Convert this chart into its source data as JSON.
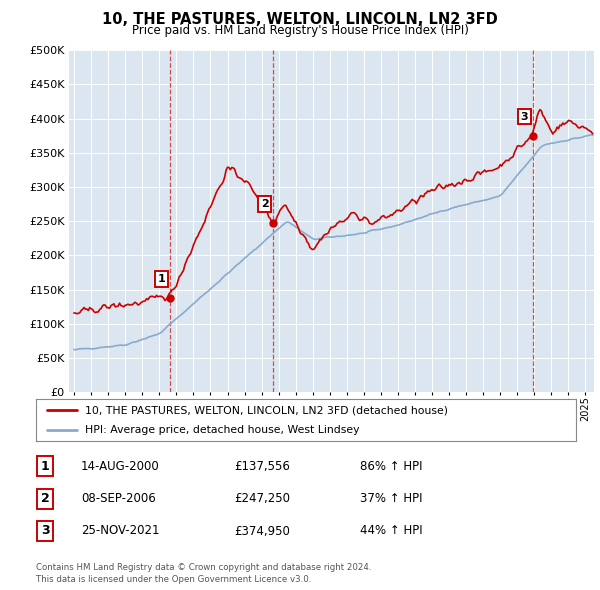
{
  "title": "10, THE PASTURES, WELTON, LINCOLN, LN2 3FD",
  "subtitle": "Price paid vs. HM Land Registry's House Price Index (HPI)",
  "sales": [
    {
      "label": "1",
      "date_str": "14-AUG-2000",
      "year": 2000.617,
      "price": 137556
    },
    {
      "label": "2",
      "date_str": "08-SEP-2006",
      "year": 2006.688,
      "price": 247250
    },
    {
      "label": "3",
      "date_str": "25-NOV-2021",
      "year": 2021.899,
      "price": 374950
    }
  ],
  "legend_line1": "10, THE PASTURES, WELTON, LINCOLN, LN2 3FD (detached house)",
  "legend_line2": "HPI: Average price, detached house, West Lindsey",
  "legend_color1": "#cc0000",
  "legend_color2": "#88aacc",
  "table_rows": [
    {
      "num": "1",
      "date": "14-AUG-2000",
      "price": "£137,556",
      "change": "86% ↑ HPI"
    },
    {
      "num": "2",
      "date": "08-SEP-2006",
      "price": "£247,250",
      "change": "37% ↑ HPI"
    },
    {
      "num": "3",
      "date": "25-NOV-2021",
      "price": "£374,950",
      "change": "44% ↑ HPI"
    }
  ],
  "footer1": "Contains HM Land Registry data © Crown copyright and database right 2024.",
  "footer2": "This data is licensed under the Open Government Licence v3.0.",
  "ylim": [
    0,
    500000
  ],
  "yticks": [
    0,
    50000,
    100000,
    150000,
    200000,
    250000,
    300000,
    350000,
    400000,
    450000,
    500000
  ],
  "xlim_start": 1994.7,
  "xlim_end": 2025.5,
  "bg_color": "#ffffff",
  "plot_bg_color": "#dce6f0",
  "grid_color": "#ffffff",
  "red_color": "#cc0000",
  "blue_color": "#88aacc",
  "vline_color": "#cc3333",
  "box_color": "#cc0000"
}
